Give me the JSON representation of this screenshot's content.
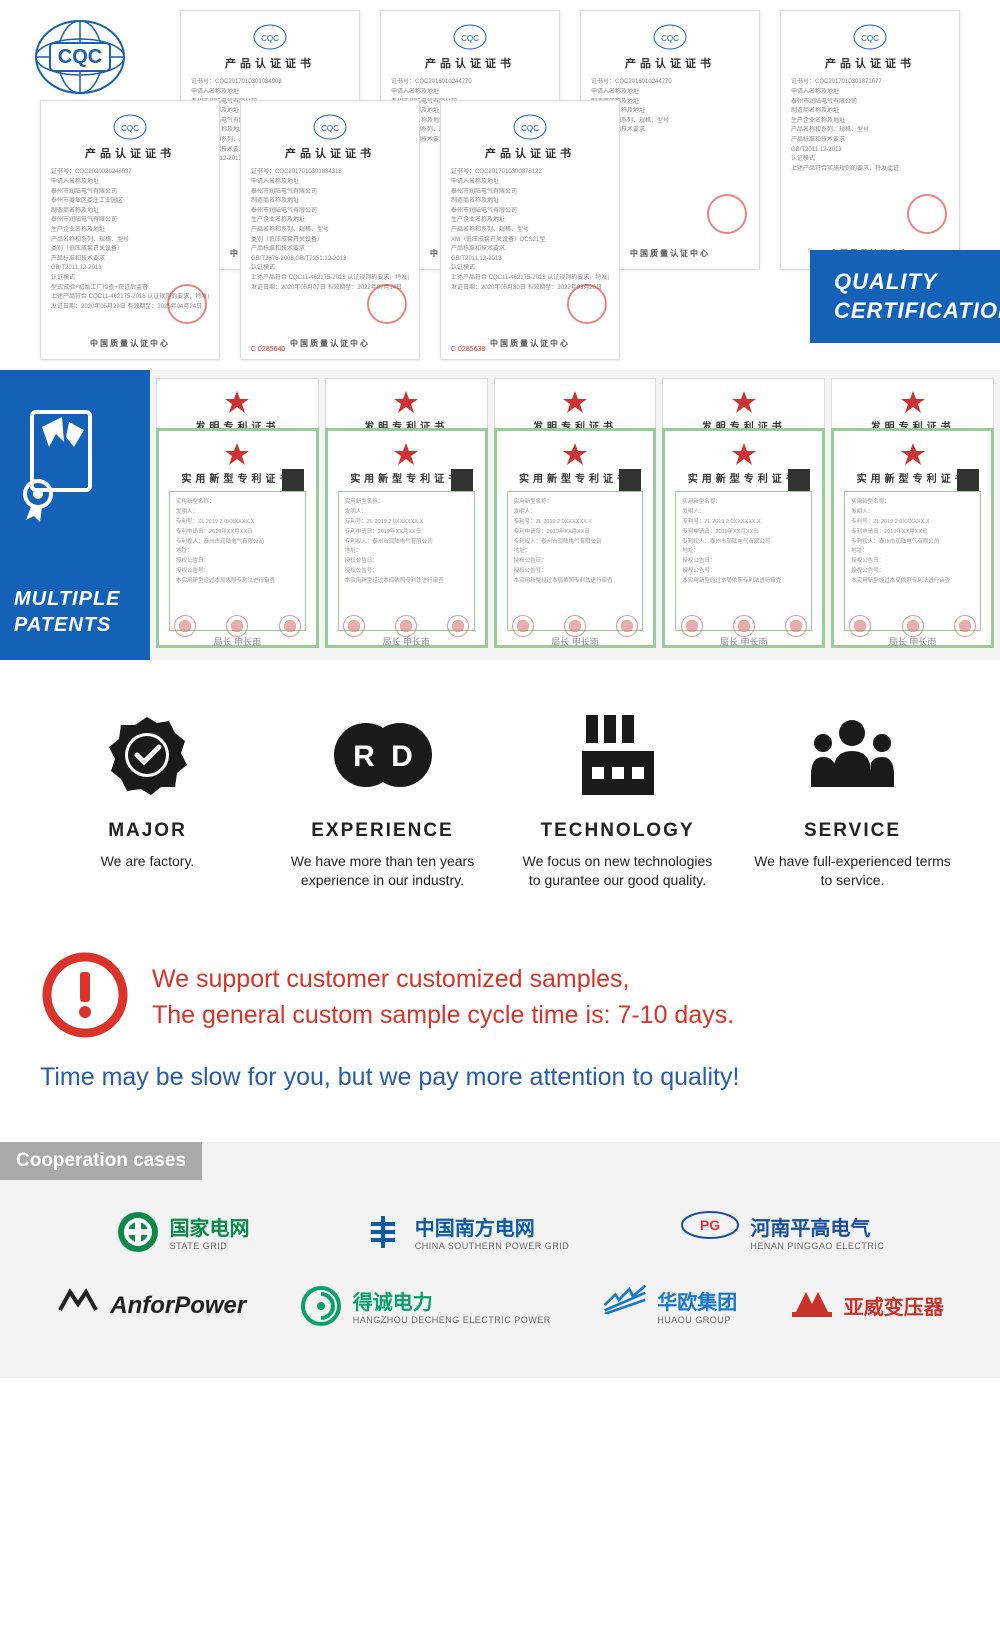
{
  "colors": {
    "brand_blue": "#1461b8",
    "notice_red": "#d9332a",
    "notice_blue": "#2a5ca8",
    "coop_header_bg": "#a9a9a9",
    "stamp_red": "#d33",
    "patent_green": "#99cc99"
  },
  "quality": {
    "label_line1": "QUALITY",
    "label_line2": "CERTIFICATION",
    "cqc_text": "CQC",
    "cert_title": "产品认证证书",
    "cert_footer": "中国质量认证中心",
    "back_serials": [
      "",
      "",
      "",
      ""
    ],
    "front_serials": [
      "",
      "C 0285640",
      "C 0285638",
      ""
    ],
    "back_seen_serials": [
      "85637",
      "",
      "85133",
      ""
    ]
  },
  "patents": {
    "label_line1": "MULTIPLE",
    "label_line2": "PATENTS",
    "back_title": "发明专利证书",
    "front_title": "实用新型专利证书",
    "count": 5
  },
  "features": [
    {
      "icon": "check-badge-icon",
      "title": "MAJOR",
      "desc": "We are factory."
    },
    {
      "icon": "rd-icon",
      "title": "EXPERIENCE",
      "desc": "We have more than ten years experience in our industry."
    },
    {
      "icon": "factory-icon",
      "title": "TECHNOLOGY",
      "desc": "We focus on new technologies to gurantee our good quality."
    },
    {
      "icon": "people-icon",
      "title": "SERVICE",
      "desc": "We have full-experienced terms to service."
    }
  ],
  "notice": {
    "line1": "We support customer customized samples,",
    "line2": "The general custom sample cycle time is: 7-10 days.",
    "sub": "Time may be slow for you, but we pay more attention to quality!"
  },
  "cooperation": {
    "header": "Cooperation cases",
    "row1": [
      {
        "name": "国家电网",
        "sub": "STATE GRID",
        "color": "#0a8a4a",
        "logo": "state-grid"
      },
      {
        "name": "中国南方电网",
        "sub": "CHINA SOUTHERN POWER GRID",
        "color": "#0a5aa8",
        "logo": "southern"
      },
      {
        "name": "河南平高电气",
        "sub": "HENAN PINGGAO ELECTRIC",
        "color": "#1a4fa0",
        "logo": "pinggao"
      }
    ],
    "row2": [
      {
        "name": "AnforPower",
        "sub": "",
        "color": "#222",
        "logo": "anfor"
      },
      {
        "name": "得诚电力",
        "sub": "HANGZHOU DECHENG ELECTRIC POWER",
        "color": "#0aa06a",
        "logo": "decheng"
      },
      {
        "name": "华欧集团",
        "sub": "HUAOU GROUP",
        "color": "#1878c8",
        "logo": "huaou"
      },
      {
        "name": "亚威变压器",
        "sub": "",
        "color": "#c8322a",
        "logo": "yawei"
      }
    ]
  }
}
